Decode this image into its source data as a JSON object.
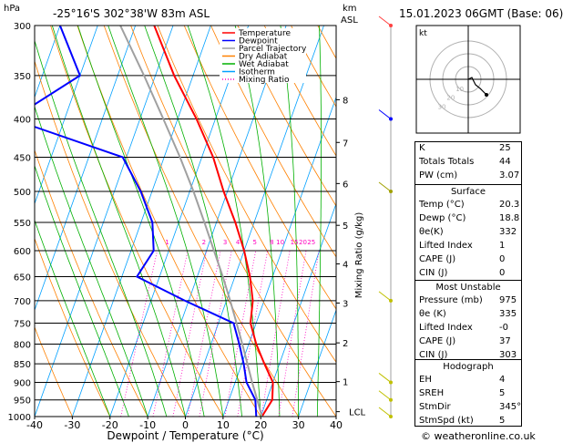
{
  "header": {
    "hpa_label": "hPa",
    "location": "-25°16'S  302°38'W  83m  ASL",
    "km_label": "km",
    "asl_label": "ASL",
    "datetime": "15.01.2023  06GMT  (Base: 06)",
    "copyright": "© weatheronline.co.uk"
  },
  "legend": [
    {
      "name": "Temperature",
      "color": "#ff0000",
      "style": "solid"
    },
    {
      "name": "Dewpoint",
      "color": "#0000ff",
      "style": "solid"
    },
    {
      "name": "Parcel Trajectory",
      "color": "#a0a0a0",
      "style": "solid"
    },
    {
      "name": "Dry Adiabat",
      "color": "#ff8000",
      "style": "solid"
    },
    {
      "name": "Wet Adiabat",
      "color": "#00b000",
      "style": "solid"
    },
    {
      "name": "Isotherm",
      "color": "#00a0ff",
      "style": "solid"
    },
    {
      "name": "Mixing Ratio",
      "color": "#ff00c0",
      "style": "dotted"
    }
  ],
  "chart_data": {
    "type": "line",
    "xlabel": "Dewpoint / Temperature (°C)",
    "ylabel_right": "Mixing Ratio (g/kg)",
    "xlim": [
      -40,
      40
    ],
    "ylim": [
      1000,
      300
    ],
    "pressure_levels": [
      300,
      350,
      400,
      450,
      500,
      550,
      600,
      650,
      700,
      750,
      800,
      850,
      900,
      950,
      1000
    ],
    "x_ticks": [
      -40,
      -30,
      -20,
      -10,
      0,
      10,
      20,
      30,
      40
    ],
    "km_ticks": [
      {
        "km": "8",
        "p": 377
      },
      {
        "km": "7",
        "p": 430
      },
      {
        "km": "6",
        "p": 488
      },
      {
        "km": "5",
        "p": 555
      },
      {
        "km": "4",
        "p": 625
      },
      {
        "km": "3",
        "p": 705
      },
      {
        "km": "2",
        "p": 797
      },
      {
        "km": "1",
        "p": 898
      },
      {
        "km": "LCL",
        "p": 985
      }
    ],
    "mixing_ratio_labels": [
      {
        "label": "1",
        "p": 590,
        "x": -6
      },
      {
        "label": "2",
        "p": 590,
        "x": 7
      },
      {
        "label": "3",
        "p": 590,
        "x": 14.5
      },
      {
        "label": "4",
        "p": 590,
        "x": 19
      },
      {
        "label": "5",
        "p": 590,
        "x": 25
      },
      {
        "label": "8",
        "p": 590,
        "x": 31
      },
      {
        "label": "10",
        "p": 590,
        "x": 34
      },
      {
        "label": "15",
        "p": 590,
        "x": 39
      },
      {
        "label": "20",
        "p": 590,
        "x": 42
      },
      {
        "label": "25",
        "p": 590,
        "x": 45
      }
    ],
    "series": [
      {
        "name": "Temperature",
        "color": "#ff0000",
        "points": [
          [
            1000,
            20.3
          ],
          [
            950,
            21.5
          ],
          [
            900,
            20
          ],
          [
            850,
            16
          ],
          [
            800,
            12
          ],
          [
            750,
            8.5
          ],
          [
            700,
            7
          ],
          [
            650,
            4
          ],
          [
            600,
            0
          ],
          [
            550,
            -5
          ],
          [
            500,
            -11
          ],
          [
            450,
            -17
          ],
          [
            400,
            -25
          ],
          [
            350,
            -35
          ],
          [
            300,
            -45
          ]
        ]
      },
      {
        "name": "Dewpoint",
        "color": "#0000ff",
        "points": [
          [
            1000,
            18.8
          ],
          [
            950,
            17
          ],
          [
            900,
            13
          ],
          [
            850,
            10.5
          ],
          [
            800,
            7.5
          ],
          [
            750,
            4
          ],
          [
            700,
            -11
          ],
          [
            650,
            -26
          ],
          [
            600,
            -24
          ],
          [
            550,
            -27
          ],
          [
            500,
            -33
          ],
          [
            450,
            -41
          ],
          [
            400,
            -74
          ],
          [
            350,
            -60
          ],
          [
            300,
            -70
          ]
        ]
      },
      {
        "name": "Parcel Trajectory",
        "color": "#a0a0a0",
        "points": [
          [
            1000,
            20.3
          ],
          [
            950,
            17.5
          ],
          [
            900,
            14.5
          ],
          [
            850,
            11.5
          ],
          [
            800,
            8.3
          ],
          [
            750,
            4.8
          ],
          [
            700,
            1
          ],
          [
            650,
            -3.2
          ],
          [
            600,
            -8
          ],
          [
            550,
            -13.2
          ],
          [
            500,
            -19
          ],
          [
            450,
            -25.8
          ],
          [
            400,
            -33.8
          ],
          [
            350,
            -43
          ],
          [
            300,
            -54
          ]
        ]
      }
    ]
  },
  "hodograph": {
    "label": "kt",
    "ring_labels": [
      "10",
      "20",
      "30"
    ]
  },
  "indices": [
    {
      "key": "K",
      "value": "25"
    },
    {
      "key": "Totals Totals",
      "value": "44"
    },
    {
      "key": "PW (cm)",
      "value": "3.07"
    }
  ],
  "surface": {
    "title": "Surface",
    "rows": [
      {
        "key": "Temp (°C)",
        "value": "20.3"
      },
      {
        "key": "Dewp (°C)",
        "value": "18.8"
      },
      {
        "key": "θe(K)",
        "value": "332"
      },
      {
        "key": "Lifted Index",
        "value": "1"
      },
      {
        "key": "CAPE (J)",
        "value": "0"
      },
      {
        "key": "CIN (J)",
        "value": "0"
      }
    ]
  },
  "unstable": {
    "title": "Most Unstable",
    "rows": [
      {
        "key": "Pressure (mb)",
        "value": "975"
      },
      {
        "key": "θe (K)",
        "value": "335"
      },
      {
        "key": "Lifted Index",
        "value": "-0"
      },
      {
        "key": "CAPE (J)",
        "value": "37"
      },
      {
        "key": "CIN (J)",
        "value": "303"
      }
    ]
  },
  "hodo_table": {
    "title": "Hodograph",
    "rows": [
      {
        "key": "EH",
        "value": "4"
      },
      {
        "key": "SREH",
        "value": "5"
      },
      {
        "key": "StmDir",
        "value": "345°"
      },
      {
        "key": "StmSpd (kt)",
        "value": "5"
      }
    ]
  }
}
